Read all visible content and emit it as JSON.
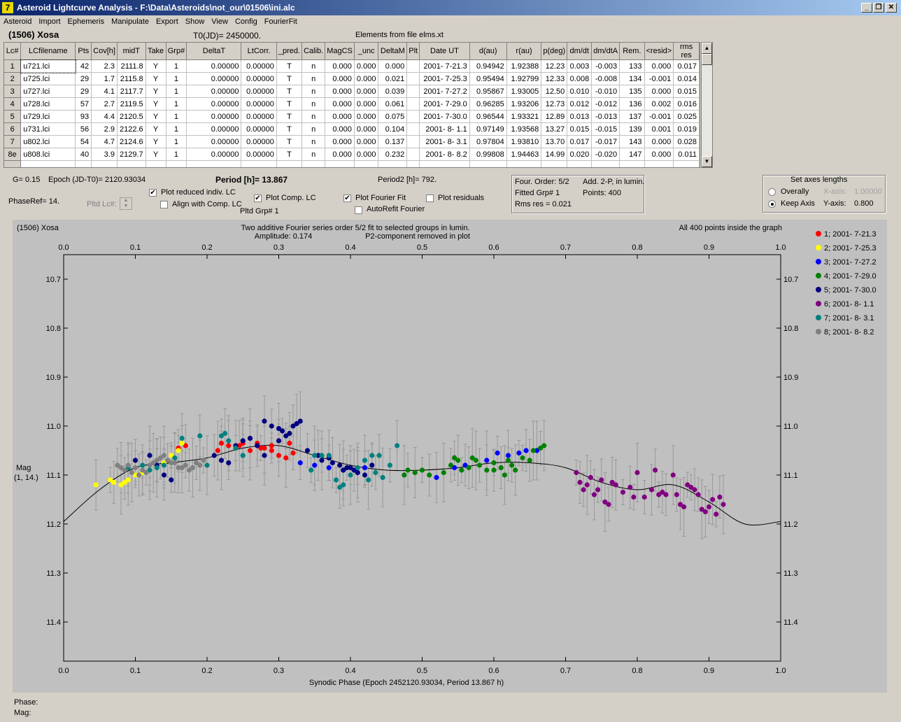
{
  "window": {
    "title": "Asteroid Lightcurve Analysis - F:\\Data\\Asteroids\\not_our\\01506\\ini.alc",
    "minimize_icon": "minimize-icon",
    "restore_icon": "restore-icon",
    "close_icon": "close-icon"
  },
  "menu": [
    "Asteroid",
    "Import",
    "Ephemeris",
    "Manipulate",
    "Export",
    "Show",
    "View",
    "Config",
    "FourierFit"
  ],
  "header": {
    "asteroid": "(1506) Xosa",
    "t0": "T0(JD)= 2450000.",
    "elements": "Elements from file elms.xt"
  },
  "table": {
    "columns": [
      "Lc#",
      "LCfilename",
      "Pts",
      "Cov[h]",
      "midT",
      "Take",
      "Grp#",
      "DeltaT",
      "LtCorr.",
      "_pred.",
      "Calib.",
      "MagCS",
      "_unc",
      "DeltaM",
      "Plt",
      "Date UT",
      "d(au)",
      "r(au)",
      "p(deg)",
      "dm/dt",
      "dm/dtA",
      "Rem.",
      "<resid>",
      "rms res"
    ],
    "rows": [
      [
        "1",
        "u721.lci",
        "42",
        "2.3",
        "2111.8",
        "Y",
        "1",
        "0.00000",
        "0.00000",
        "T",
        "n",
        "0.000",
        "0.000",
        "0.000",
        "",
        "2001- 7-21.3",
        "0.94942",
        "1.92388",
        "12.23",
        "0.003",
        "-0.003",
        "133",
        "0.000",
        "0.017"
      ],
      [
        "2",
        "u725.lci",
        "29",
        "1.7",
        "2115.8",
        "Y",
        "1",
        "0.00000",
        "0.00000",
        "T",
        "n",
        "0.000",
        "0.000",
        "0.021",
        "",
        "2001- 7-25.3",
        "0.95494",
        "1.92799",
        "12.33",
        "0.008",
        "-0.008",
        "134",
        "-0.001",
        "0.014"
      ],
      [
        "3",
        "u727.lci",
        "29",
        "4.1",
        "2117.7",
        "Y",
        "1",
        "0.00000",
        "0.00000",
        "T",
        "n",
        "0.000",
        "0.000",
        "0.039",
        "",
        "2001- 7-27.2",
        "0.95867",
        "1.93005",
        "12.50",
        "0.010",
        "-0.010",
        "135",
        "0.000",
        "0.015"
      ],
      [
        "4",
        "u728.lci",
        "57",
        "2.7",
        "2119.5",
        "Y",
        "1",
        "0.00000",
        "0.00000",
        "T",
        "n",
        "0.000",
        "0.000",
        "0.061",
        "",
        "2001- 7-29.0",
        "0.96285",
        "1.93206",
        "12.73",
        "0.012",
        "-0.012",
        "136",
        "0.002",
        "0.016"
      ],
      [
        "5",
        "u729.lci",
        "93",
        "4.4",
        "2120.5",
        "Y",
        "1",
        "0.00000",
        "0.00000",
        "T",
        "n",
        "0.000",
        "0.000",
        "0.075",
        "",
        "2001- 7-30.0",
        "0.96544",
        "1.93321",
        "12.89",
        "0.013",
        "-0.013",
        "137",
        "-0.001",
        "0.025"
      ],
      [
        "6",
        "u731.lci",
        "56",
        "2.9",
        "2122.6",
        "Y",
        "1",
        "0.00000",
        "0.00000",
        "T",
        "n",
        "0.000",
        "0.000",
        "0.104",
        "",
        "2001- 8- 1.1",
        "0.97149",
        "1.93568",
        "13.27",
        "0.015",
        "-0.015",
        "139",
        "0.001",
        "0.019"
      ],
      [
        "7",
        "u802.lci",
        "54",
        "4.7",
        "2124.6",
        "Y",
        "1",
        "0.00000",
        "0.00000",
        "T",
        "n",
        "0.000",
        "0.000",
        "0.137",
        "",
        "2001- 8- 3.1",
        "0.97804",
        "1.93810",
        "13.70",
        "0.017",
        "-0.017",
        "143",
        "0.000",
        "0.028"
      ],
      [
        "8e",
        "u808.lci",
        "40",
        "3.9",
        "2129.7",
        "Y",
        "1",
        "0.00000",
        "0.00000",
        "T",
        "n",
        "0.000",
        "0.000",
        "0.232",
        "",
        "2001- 8- 8.2",
        "0.99808",
        "1.94463",
        "14.99",
        "0.020",
        "-0.020",
        "147",
        "0.000",
        "0.011"
      ]
    ]
  },
  "params": {
    "g": "G= 0.15",
    "epoch": "Epoch (JD-T0)= 2120.93034",
    "period": "Period [h]= 13.867",
    "period2": "Period2 [h]= 792.",
    "phaseref": "PhaseRef= 14.",
    "pltd_lc": "Pltd Lc#:",
    "pltd_grp": "Pltd Grp#  1"
  },
  "checks": {
    "plot_reduced": {
      "label": "Plot reduced indiv. LC",
      "checked": true
    },
    "align_comp": {
      "label": "Align with Comp. LC",
      "checked": false
    },
    "plot_comp": {
      "label": "Plot Comp. LC",
      "checked": true
    },
    "plot_fourier": {
      "label": "Plot Fourier Fit",
      "checked": true
    },
    "autorefit": {
      "label": "AutoRefit Fourier",
      "checked": false
    },
    "plot_residuals": {
      "label": "Plot residuals",
      "checked": false
    }
  },
  "fourier_info": {
    "order": "Four. Order:  5/2",
    "add": "Add. 2-P, in lumin.",
    "fitted": "Fitted Grp# 1",
    "points": "Points: 400",
    "rms": "Rms res     = 0.021"
  },
  "axes_box": {
    "title": "Set axes lengths",
    "overally": "Overally",
    "keep_axis": "Keep Axis",
    "xaxis_label": "X-axis:",
    "xaxis_value": "1.00000",
    "yaxis_label": "Y-axis:",
    "yaxis_value": "0.800"
  },
  "chart_data": {
    "type": "scatter",
    "title_left": "(1506) Xosa",
    "title": "Two additive Fourier series order 5/2 fit to selected groups in lumin.",
    "subtitle_amp": "Amplitude: 0.174",
    "subtitle_p2": "P2-component removed in plot",
    "note_right": "All 400 points inside the graph",
    "xlabel": "Synodic Phase (Epoch 2452120.93034, Period 13.867 h)",
    "ylabel": "Mag",
    "ylabel2": "(1, 14.)",
    "xlim": [
      0.0,
      1.0
    ],
    "ylim": [
      10.65,
      11.48
    ],
    "y_inverted": true,
    "xticks": [
      "0.0",
      "0.1",
      "0.2",
      "0.3",
      "0.4",
      "0.5",
      "0.6",
      "0.7",
      "0.8",
      "0.9",
      "1.0"
    ],
    "yticks": [
      "10.7",
      "10.8",
      "10.9",
      "11.0",
      "11.1",
      "11.2",
      "11.3",
      "11.4"
    ],
    "fit_curve": {
      "x": [
        0.0,
        0.05,
        0.1,
        0.15,
        0.2,
        0.25,
        0.3,
        0.35,
        0.4,
        0.45,
        0.5,
        0.55,
        0.6,
        0.65,
        0.7,
        0.75,
        0.8,
        0.85,
        0.9,
        0.95,
        1.0
      ],
      "y": [
        11.195,
        11.13,
        11.085,
        11.075,
        11.065,
        11.045,
        11.04,
        11.06,
        11.08,
        11.09,
        11.09,
        11.085,
        11.075,
        11.075,
        11.085,
        11.115,
        11.13,
        11.12,
        11.155,
        11.2,
        11.195
      ],
      "color": "#000000"
    },
    "series": [
      {
        "name": "1; 2001- 7-21.3",
        "color": "#ff0000",
        "x": [
          0.16,
          0.17,
          0.215,
          0.22,
          0.23,
          0.24,
          0.25,
          0.26,
          0.27,
          0.28,
          0.29,
          0.3,
          0.31,
          0.32,
          0.25,
          0.29,
          0.3,
          0.26,
          0.315,
          0.245,
          0.275
        ],
        "y": [
          11.045,
          11.04,
          11.05,
          11.035,
          11.04,
          11.045,
          11.03,
          11.025,
          11.035,
          11.045,
          11.05,
          11.06,
          11.065,
          11.055,
          11.035,
          11.04,
          11.03,
          11.05,
          11.035,
          11.04,
          11.045
        ]
      },
      {
        "name": "2; 2001- 7-25.3",
        "color": "#ffff00",
        "x": [
          0.045,
          0.065,
          0.07,
          0.08,
          0.085,
          0.09,
          0.1,
          0.11,
          0.12,
          0.13,
          0.14,
          0.15,
          0.16,
          0.165
        ],
        "y": [
          11.12,
          11.11,
          11.115,
          11.12,
          11.115,
          11.11,
          11.1,
          11.095,
          11.09,
          11.08,
          11.075,
          11.06,
          11.05,
          11.035
        ]
      },
      {
        "name": "3; 2001- 7-27.2",
        "color": "#0000ff",
        "x": [
          0.33,
          0.35,
          0.37,
          0.39,
          0.41,
          0.42,
          0.52,
          0.545,
          0.56,
          0.59,
          0.605,
          0.62,
          0.635,
          0.645,
          0.66
        ],
        "y": [
          11.075,
          11.08,
          11.085,
          11.09,
          11.095,
          11.085,
          11.105,
          11.085,
          11.08,
          11.07,
          11.055,
          11.06,
          11.055,
          11.05,
          11.05
        ]
      },
      {
        "name": "4; 2001- 7-29.0",
        "color": "#008000",
        "x": [
          0.475,
          0.48,
          0.49,
          0.5,
          0.51,
          0.53,
          0.54,
          0.55,
          0.555,
          0.565,
          0.57,
          0.58,
          0.59,
          0.6,
          0.61,
          0.615,
          0.625,
          0.63,
          0.64,
          0.65,
          0.655,
          0.665,
          0.67,
          0.62,
          0.6,
          0.575,
          0.545
        ],
        "y": [
          11.1,
          11.09,
          11.095,
          11.09,
          11.1,
          11.095,
          11.08,
          11.07,
          11.09,
          11.085,
          11.065,
          11.08,
          11.09,
          11.075,
          11.085,
          11.1,
          11.08,
          11.09,
          11.065,
          11.07,
          11.05,
          11.045,
          11.04,
          11.07,
          11.09,
          11.07,
          11.065
        ]
      },
      {
        "name": "5; 2001- 7-30.0",
        "color": "#000080",
        "x": [
          0.1,
          0.12,
          0.13,
          0.14,
          0.15,
          0.21,
          0.22,
          0.23,
          0.24,
          0.26,
          0.27,
          0.28,
          0.29,
          0.3,
          0.31,
          0.32,
          0.33,
          0.34,
          0.355,
          0.37,
          0.385,
          0.39,
          0.4,
          0.41,
          0.42,
          0.43,
          0.36,
          0.3,
          0.28,
          0.305,
          0.315,
          0.325,
          0.25,
          0.375,
          0.395,
          0.405
        ],
        "y": [
          11.07,
          11.06,
          11.08,
          11.1,
          11.11,
          11.06,
          11.07,
          11.075,
          11.04,
          11.025,
          11.04,
          11.06,
          11.0,
          11.005,
          11.02,
          11.0,
          10.99,
          11.05,
          11.06,
          11.065,
          11.08,
          11.09,
          11.085,
          11.095,
          11.1,
          11.08,
          11.07,
          11.03,
          10.99,
          11.01,
          11.015,
          10.995,
          11.03,
          11.075,
          11.085,
          11.09
        ]
      },
      {
        "name": "6; 2001- 8- 1.1",
        "color": "#800080",
        "x": [
          0.715,
          0.72,
          0.73,
          0.735,
          0.74,
          0.745,
          0.75,
          0.755,
          0.76,
          0.77,
          0.78,
          0.79,
          0.8,
          0.81,
          0.82,
          0.83,
          0.84,
          0.85,
          0.855,
          0.86,
          0.87,
          0.88,
          0.89,
          0.9,
          0.905,
          0.91,
          0.915,
          0.92,
          0.725,
          0.765,
          0.795,
          0.835,
          0.865,
          0.885,
          0.895,
          0.875,
          0.825
        ],
        "y": [
          11.095,
          11.115,
          11.12,
          11.105,
          11.14,
          11.13,
          11.11,
          11.155,
          11.16,
          11.12,
          11.135,
          11.125,
          11.095,
          11.145,
          11.13,
          11.14,
          11.14,
          11.1,
          11.14,
          11.16,
          11.12,
          11.13,
          11.17,
          11.165,
          11.15,
          11.18,
          11.145,
          11.16,
          11.13,
          11.115,
          11.145,
          11.135,
          11.165,
          11.14,
          11.175,
          11.125,
          11.09
        ]
      },
      {
        "name": "7; 2001- 8- 3.1",
        "color": "#008080",
        "x": [
          0.09,
          0.11,
          0.12,
          0.13,
          0.14,
          0.155,
          0.165,
          0.19,
          0.2,
          0.22,
          0.23,
          0.24,
          0.25,
          0.35,
          0.36,
          0.37,
          0.38,
          0.39,
          0.4,
          0.41,
          0.42,
          0.43,
          0.44,
          0.445,
          0.455,
          0.465,
          0.345,
          0.385,
          0.425,
          0.435,
          0.225
        ],
        "y": [
          11.085,
          11.08,
          11.09,
          11.085,
          11.08,
          11.065,
          11.025,
          11.02,
          11.08,
          11.02,
          11.03,
          11.045,
          11.06,
          11.06,
          11.06,
          11.06,
          11.11,
          11.12,
          11.1,
          11.085,
          11.07,
          11.06,
          11.06,
          11.105,
          11.08,
          11.04,
          11.09,
          11.125,
          11.11,
          11.095,
          11.015
        ]
      },
      {
        "name": "8; 2001- 8- 8.2",
        "color": "#808080",
        "x": [
          0.075,
          0.08,
          0.085,
          0.09,
          0.095,
          0.1,
          0.11,
          0.12,
          0.13,
          0.14,
          0.15,
          0.16,
          0.17,
          0.175,
          0.18,
          0.185,
          0.19,
          0.195,
          0.105,
          0.125,
          0.145,
          0.165,
          0.115,
          0.135,
          0.155
        ],
        "y": [
          11.08,
          11.085,
          11.09,
          11.08,
          11.095,
          11.085,
          11.09,
          11.08,
          11.07,
          11.06,
          11.075,
          11.085,
          11.08,
          11.09,
          11.085,
          11.075,
          11.08,
          11.07,
          11.1,
          11.075,
          11.07,
          11.085,
          11.095,
          11.065,
          11.075
        ]
      }
    ]
  },
  "status": {
    "phase": "Phase:",
    "mag": "Mag:"
  }
}
